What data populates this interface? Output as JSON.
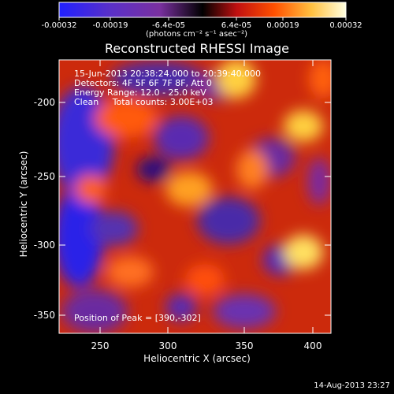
{
  "plot_title": "Reconstructed RHESSI Image",
  "colorbar": {
    "tick_labels": [
      "-0.00032",
      "-0.00019",
      "-6.4e-05",
      "6.4e-05",
      "0.00019",
      "0.00032"
    ],
    "unit_label": "(photons cm⁻² s⁻¹ asec⁻²)"
  },
  "image_info": {
    "time_range": "15-Jun-2013 20:38:24.000 to 20:39:40.000",
    "detectors": "Detectors: 4F 5F 6F 7F 8F, Att 0",
    "energy_range": "Energy Range: 12.0 - 25.0 keV",
    "clean_counts": "Clean     Total counts: 3.00E+03"
  },
  "peak_label": "Position of Peak = [390,-302]",
  "axes": {
    "xlabel": "Heliocentric X (arcsec)",
    "ylabel": "Heliocentric Y (arcsec)",
    "xticks": [
      "250",
      "300",
      "350",
      "400"
    ],
    "yticks": [
      "-200",
      "-250",
      "-300",
      "-350"
    ]
  },
  "timestamp": "14-Aug-2013 23:27",
  "colors": {
    "frame": "#ffffff",
    "background": "#000000"
  }
}
